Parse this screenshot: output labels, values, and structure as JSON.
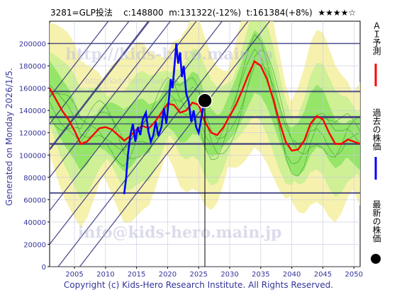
{
  "header": {
    "title": "3281=GLP投法    c:148800  m:131322(-12%)  t:161384(+8%)  ★★★★☆"
  },
  "side": {
    "generated": "Generated on Monday 2026/1/5.",
    "ai_forecast": "ＡＩ予測",
    "past_price": "過去の株価",
    "latest_price": "最新の株価"
  },
  "watermarks": {
    "url": "http://kids-hero.main.jp",
    "url_small": "http://kids-hero.main.jp",
    "email": "info@kids-hero.main.jp"
  },
  "footer": {
    "copyright": "Copyright (c) Kids-Hero Research Institute. All Rights Reserved."
  },
  "colors": {
    "ai_forecast": "#ff0000",
    "past_price": "#0000ff",
    "latest_price": "#000000",
    "band_green": "#66dd44",
    "band_yellow": "#f4f0a0",
    "trend_lines": "#33337a",
    "axis_text": "#333399"
  },
  "chart_data": {
    "type": "line",
    "title": "3281=GLP投法    c:148800  m:131322(-12%)  t:161384(+8%)  ★★★★☆",
    "xlim": [
      2001,
      2051
    ],
    "ylim": [
      0,
      220000
    ],
    "x_ticks": [
      2005,
      2010,
      2015,
      2020,
      2025,
      2030,
      2035,
      2040,
      2045,
      2050
    ],
    "y_ticks": [
      0,
      20000,
      40000,
      60000,
      80000,
      100000,
      120000,
      140000,
      160000,
      180000,
      200000
    ],
    "grid": true,
    "legend": [
      {
        "label": "ＡＩ予測",
        "marker": "line",
        "color": "#ff0000"
      },
      {
        "label": "過去の株価",
        "marker": "line",
        "color": "#0000ff"
      },
      {
        "label": "最新の株価",
        "marker": "dot",
        "color": "#000000"
      }
    ],
    "series": [
      {
        "name": "ＡＩ予測",
        "color": "#ff0000",
        "points": [
          [
            2001,
            160000
          ],
          [
            2002,
            150000
          ],
          [
            2003,
            140000
          ],
          [
            2004,
            132000
          ],
          [
            2005,
            122000
          ],
          [
            2006,
            110000
          ],
          [
            2007,
            112000
          ],
          [
            2008,
            118000
          ],
          [
            2009,
            124000
          ],
          [
            2010,
            125000
          ],
          [
            2011,
            123000
          ],
          [
            2012,
            118000
          ],
          [
            2013,
            113000
          ],
          [
            2014,
            117000
          ],
          [
            2015,
            123000
          ],
          [
            2016,
            126000
          ],
          [
            2017,
            124000
          ],
          [
            2018,
            130000
          ],
          [
            2019,
            138000
          ],
          [
            2020,
            146000
          ],
          [
            2021,
            145000
          ],
          [
            2022,
            138000
          ],
          [
            2023,
            140000
          ],
          [
            2024,
            147000
          ],
          [
            2025,
            145000
          ],
          [
            2026,
            130000
          ],
          [
            2027,
            120000
          ],
          [
            2028,
            118000
          ],
          [
            2029,
            125000
          ],
          [
            2030,
            135000
          ],
          [
            2031,
            145000
          ],
          [
            2032,
            158000
          ],
          [
            2033,
            172000
          ],
          [
            2034,
            184000
          ],
          [
            2035,
            180000
          ],
          [
            2036,
            168000
          ],
          [
            2037,
            150000
          ],
          [
            2038,
            130000
          ],
          [
            2039,
            112000
          ],
          [
            2040,
            104000
          ],
          [
            2041,
            105000
          ],
          [
            2042,
            113000
          ],
          [
            2043,
            128000
          ],
          [
            2044,
            135000
          ],
          [
            2045,
            132000
          ],
          [
            2046,
            120000
          ],
          [
            2047,
            110000
          ],
          [
            2048,
            110000
          ],
          [
            2049,
            114000
          ],
          [
            2050,
            112000
          ],
          [
            2051,
            110000
          ]
        ]
      },
      {
        "name": "過去の株価",
        "color": "#0000ff",
        "points": [
          [
            2013.0,
            65000
          ],
          [
            2013.3,
            78000
          ],
          [
            2013.6,
            100000
          ],
          [
            2014.0,
            118000
          ],
          [
            2014.4,
            128000
          ],
          [
            2014.8,
            112000
          ],
          [
            2015.2,
            125000
          ],
          [
            2015.6,
            118000
          ],
          [
            2016.0,
            132000
          ],
          [
            2016.5,
            138000
          ],
          [
            2016.9,
            121000
          ],
          [
            2017.3,
            112000
          ],
          [
            2017.7,
            118000
          ],
          [
            2018.1,
            130000
          ],
          [
            2018.5,
            117000
          ],
          [
            2019.0,
            125000
          ],
          [
            2019.4,
            142000
          ],
          [
            2019.8,
            128000
          ],
          [
            2020.2,
            150000
          ],
          [
            2020.5,
            168000
          ],
          [
            2020.8,
            160000
          ],
          [
            2021.1,
            180000
          ],
          [
            2021.4,
            200000
          ],
          [
            2021.7,
            182000
          ],
          [
            2022.0,
            192000
          ],
          [
            2022.3,
            170000
          ],
          [
            2022.6,
            180000
          ],
          [
            2023.0,
            155000
          ],
          [
            2023.4,
            148000
          ],
          [
            2023.8,
            130000
          ],
          [
            2024.2,
            140000
          ],
          [
            2024.6,
            125000
          ],
          [
            2025.0,
            120000
          ],
          [
            2025.4,
            132000
          ],
          [
            2025.8,
            145000
          ],
          [
            2026.0,
            148800
          ]
        ]
      }
    ],
    "latest_point": {
      "x": 2026.0,
      "y": 148800
    }
  }
}
